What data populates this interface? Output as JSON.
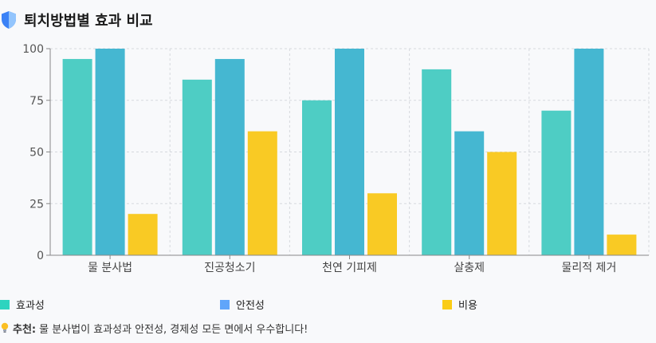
{
  "header": {
    "title": "퇴치방법별 효과 비교",
    "icon": "shield-icon"
  },
  "chart_data": {
    "type": "bar",
    "categories": [
      "물 분사법",
      "진공청소기",
      "천연 기피제",
      "살충제",
      "물리적 제거"
    ],
    "series": [
      {
        "name": "효과성",
        "values": [
          95,
          85,
          75,
          90,
          70
        ],
        "color": "#4ecdc4"
      },
      {
        "name": "안전성",
        "values": [
          100,
          95,
          100,
          60,
          100
        ],
        "color": "#45b7d1"
      },
      {
        "name": "비용",
        "values": [
          20,
          60,
          30,
          50,
          10
        ],
        "color": "#f9ca24"
      }
    ],
    "ylim": [
      0,
      100
    ],
    "yticks": [
      0,
      25,
      50,
      75,
      100
    ],
    "grid": true,
    "legend_position": "bottom"
  },
  "legend": {
    "items": [
      {
        "label": "효과성",
        "color": "#2dd4bf"
      },
      {
        "label": "안전성",
        "color": "#60a5fa"
      },
      {
        "label": "비용",
        "color": "#facc15"
      }
    ]
  },
  "tip": {
    "icon": "lightbulb-icon",
    "label": "추천:",
    "text": "물 분사법이 효과성과 안전성, 경제성 모든 면에서 우수합니다!"
  }
}
